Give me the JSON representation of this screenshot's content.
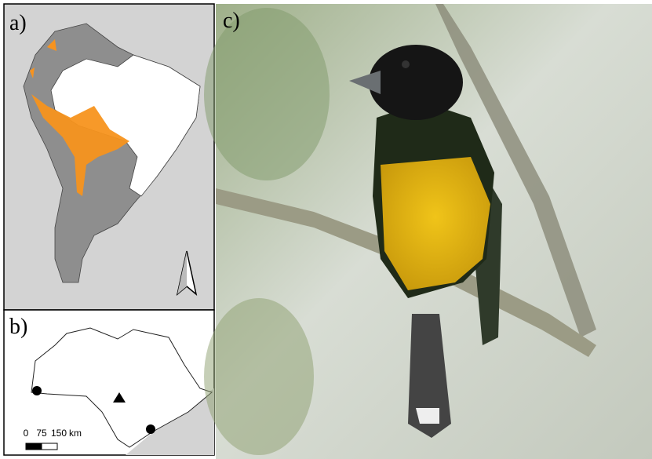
{
  "panels": [
    {
      "label": "a)"
    },
    {
      "label": "b)",
      "scale_bar": {
        "ticks": [
          "0",
          "75",
          "150"
        ],
        "unit": "km"
      }
    },
    {
      "label": "c)"
    }
  ]
}
